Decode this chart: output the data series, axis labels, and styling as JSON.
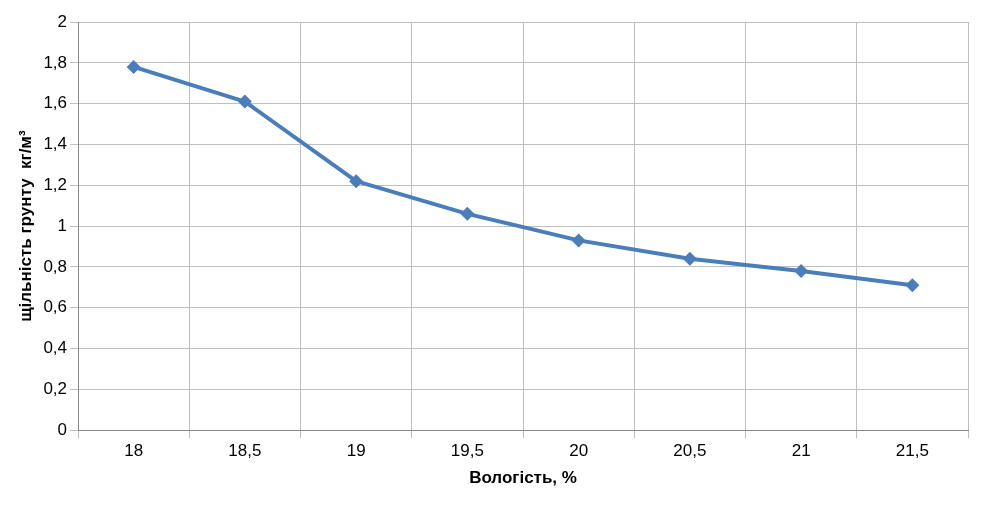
{
  "chart_data": {
    "type": "line",
    "xlabel": "Вологість, %",
    "ylabel": "щільність грунту  кг/м³",
    "categories": [
      "18",
      "18,5",
      "19",
      "19,5",
      "20",
      "20,5",
      "21",
      "21,5"
    ],
    "series": [
      {
        "color": "#4a7ebb",
        "values": [
          1.78,
          1.61,
          1.22,
          1.06,
          0.93,
          0.84,
          0.78,
          0.71
        ]
      }
    ],
    "ylim": [
      0,
      2
    ],
    "yticks": [
      0,
      {
        "value": 0.2,
        "label": "0,2"
      },
      {
        "value": 0.4,
        "label": "0,4"
      },
      {
        "value": 0.6,
        "label": "0,6"
      },
      {
        "value": 0.8,
        "label": "0,8"
      },
      1,
      {
        "value": 1.2,
        "label": "1,2"
      },
      {
        "value": 1.4,
        "label": "1,4"
      },
      {
        "value": 1.6,
        "label": "1,6"
      },
      {
        "value": 1.8,
        "label": "1,8"
      },
      2
    ],
    "grid": true,
    "legend": false,
    "marker": "diamond",
    "line_style": "solid"
  }
}
